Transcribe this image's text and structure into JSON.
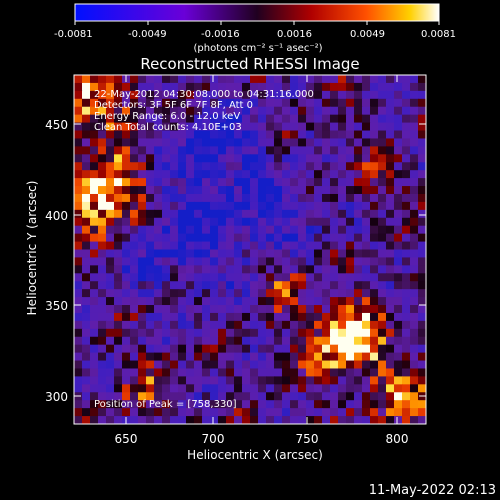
{
  "colorbar": {
    "tick_labels": [
      "-0.0081",
      "-0.0049",
      "-0.0016",
      "0.0016",
      "0.0049",
      "0.0081"
    ],
    "unit_label": "(photons cm⁻² s⁻¹ asec⁻²)"
  },
  "plot": {
    "title": "Reconstructed RHESSI Image",
    "xlabel": "Heliocentric X (arcsec)",
    "ylabel": "Heliocentric Y (arcsec)",
    "x_ticks": [
      "650",
      "700",
      "750",
      "800"
    ],
    "y_ticks": [
      "300",
      "350",
      "400",
      "450"
    ],
    "xlim": [
      622,
      812
    ],
    "ylim": [
      285,
      476
    ],
    "annotations": [
      "22-May-2012 04:30:08.000 to 04:31:16.000",
      "Detectors: 3F 5F 6F 7F 8F, Att 0",
      "Energy Range: 6.0 - 12.0 keV",
      "Clean     Total counts: 4.10E+03"
    ],
    "peak_text": "Position of Peak = [758,330]"
  },
  "timestamp": "11-May-2022 02:13"
}
